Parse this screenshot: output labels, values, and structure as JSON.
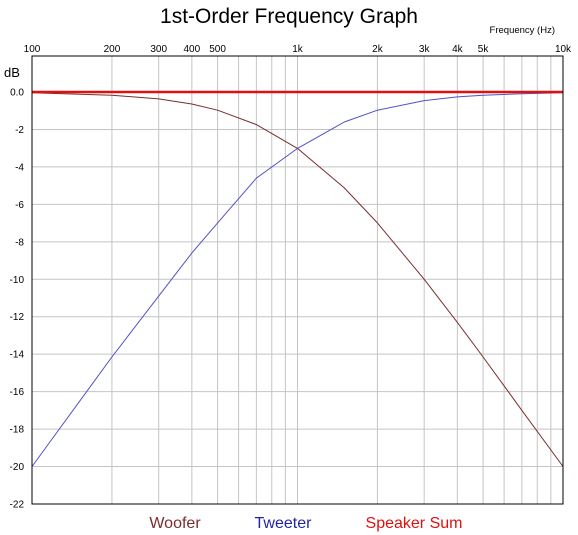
{
  "chart_data": {
    "type": "line",
    "title": "1st-Order Frequency Graph",
    "xlabel": "Frequency   (Hz)",
    "ylabel": "dB",
    "x_scale": "log",
    "xlim": [
      100,
      10000
    ],
    "ylim": [
      -22,
      1.5
    ],
    "x_tick_labels": [
      {
        "value": 100,
        "label": "100"
      },
      {
        "value": 200,
        "label": "200"
      },
      {
        "value": 300,
        "label": "300"
      },
      {
        "value": 400,
        "label": "400"
      },
      {
        "value": 500,
        "label": "500"
      },
      {
        "value": 1000,
        "label": "1k"
      },
      {
        "value": 2000,
        "label": "2k"
      },
      {
        "value": 3000,
        "label": "3k"
      },
      {
        "value": 4000,
        "label": "4k"
      },
      {
        "value": 5000,
        "label": "5k"
      },
      {
        "value": 10000,
        "label": "10k"
      }
    ],
    "y_ticks": [
      0,
      -2,
      -4,
      -6,
      -8,
      -10,
      -12,
      -14,
      -16,
      -18,
      -20,
      -22
    ],
    "y_tick_labels": [
      "0.0",
      "-2",
      "-4",
      "-6",
      "-8",
      "-10",
      "-12",
      "-14",
      "-16",
      "-18",
      "-20",
      "-22"
    ],
    "grid": true,
    "legend_position": "bottom",
    "series": [
      {
        "name": "Woofer",
        "color": "#7b2d2d",
        "x": [
          100,
          200,
          300,
          400,
          500,
          700,
          1000,
          1500,
          2000,
          3000,
          4000,
          5000,
          7000,
          10000
        ],
        "y": [
          -0.04,
          -0.17,
          -0.37,
          -0.64,
          -0.97,
          -1.74,
          -3.01,
          -5.12,
          -6.99,
          -10.0,
          -12.3,
          -14.15,
          -17.0,
          -20.0
        ]
      },
      {
        "name": "Tweeter",
        "color": "#5050c8",
        "x": [
          100,
          200,
          300,
          400,
          500,
          700,
          1000,
          1500,
          2000,
          3000,
          4000,
          5000,
          7000,
          10000
        ],
        "y": [
          -20.0,
          -14.15,
          -10.9,
          -8.6,
          -6.99,
          -4.6,
          -3.01,
          -1.6,
          -0.97,
          -0.46,
          -0.26,
          -0.17,
          -0.09,
          -0.04
        ]
      },
      {
        "name": "Speaker Sum",
        "color": "#e01010",
        "x": [
          100,
          10000
        ],
        "y": [
          0,
          0
        ]
      }
    ]
  }
}
